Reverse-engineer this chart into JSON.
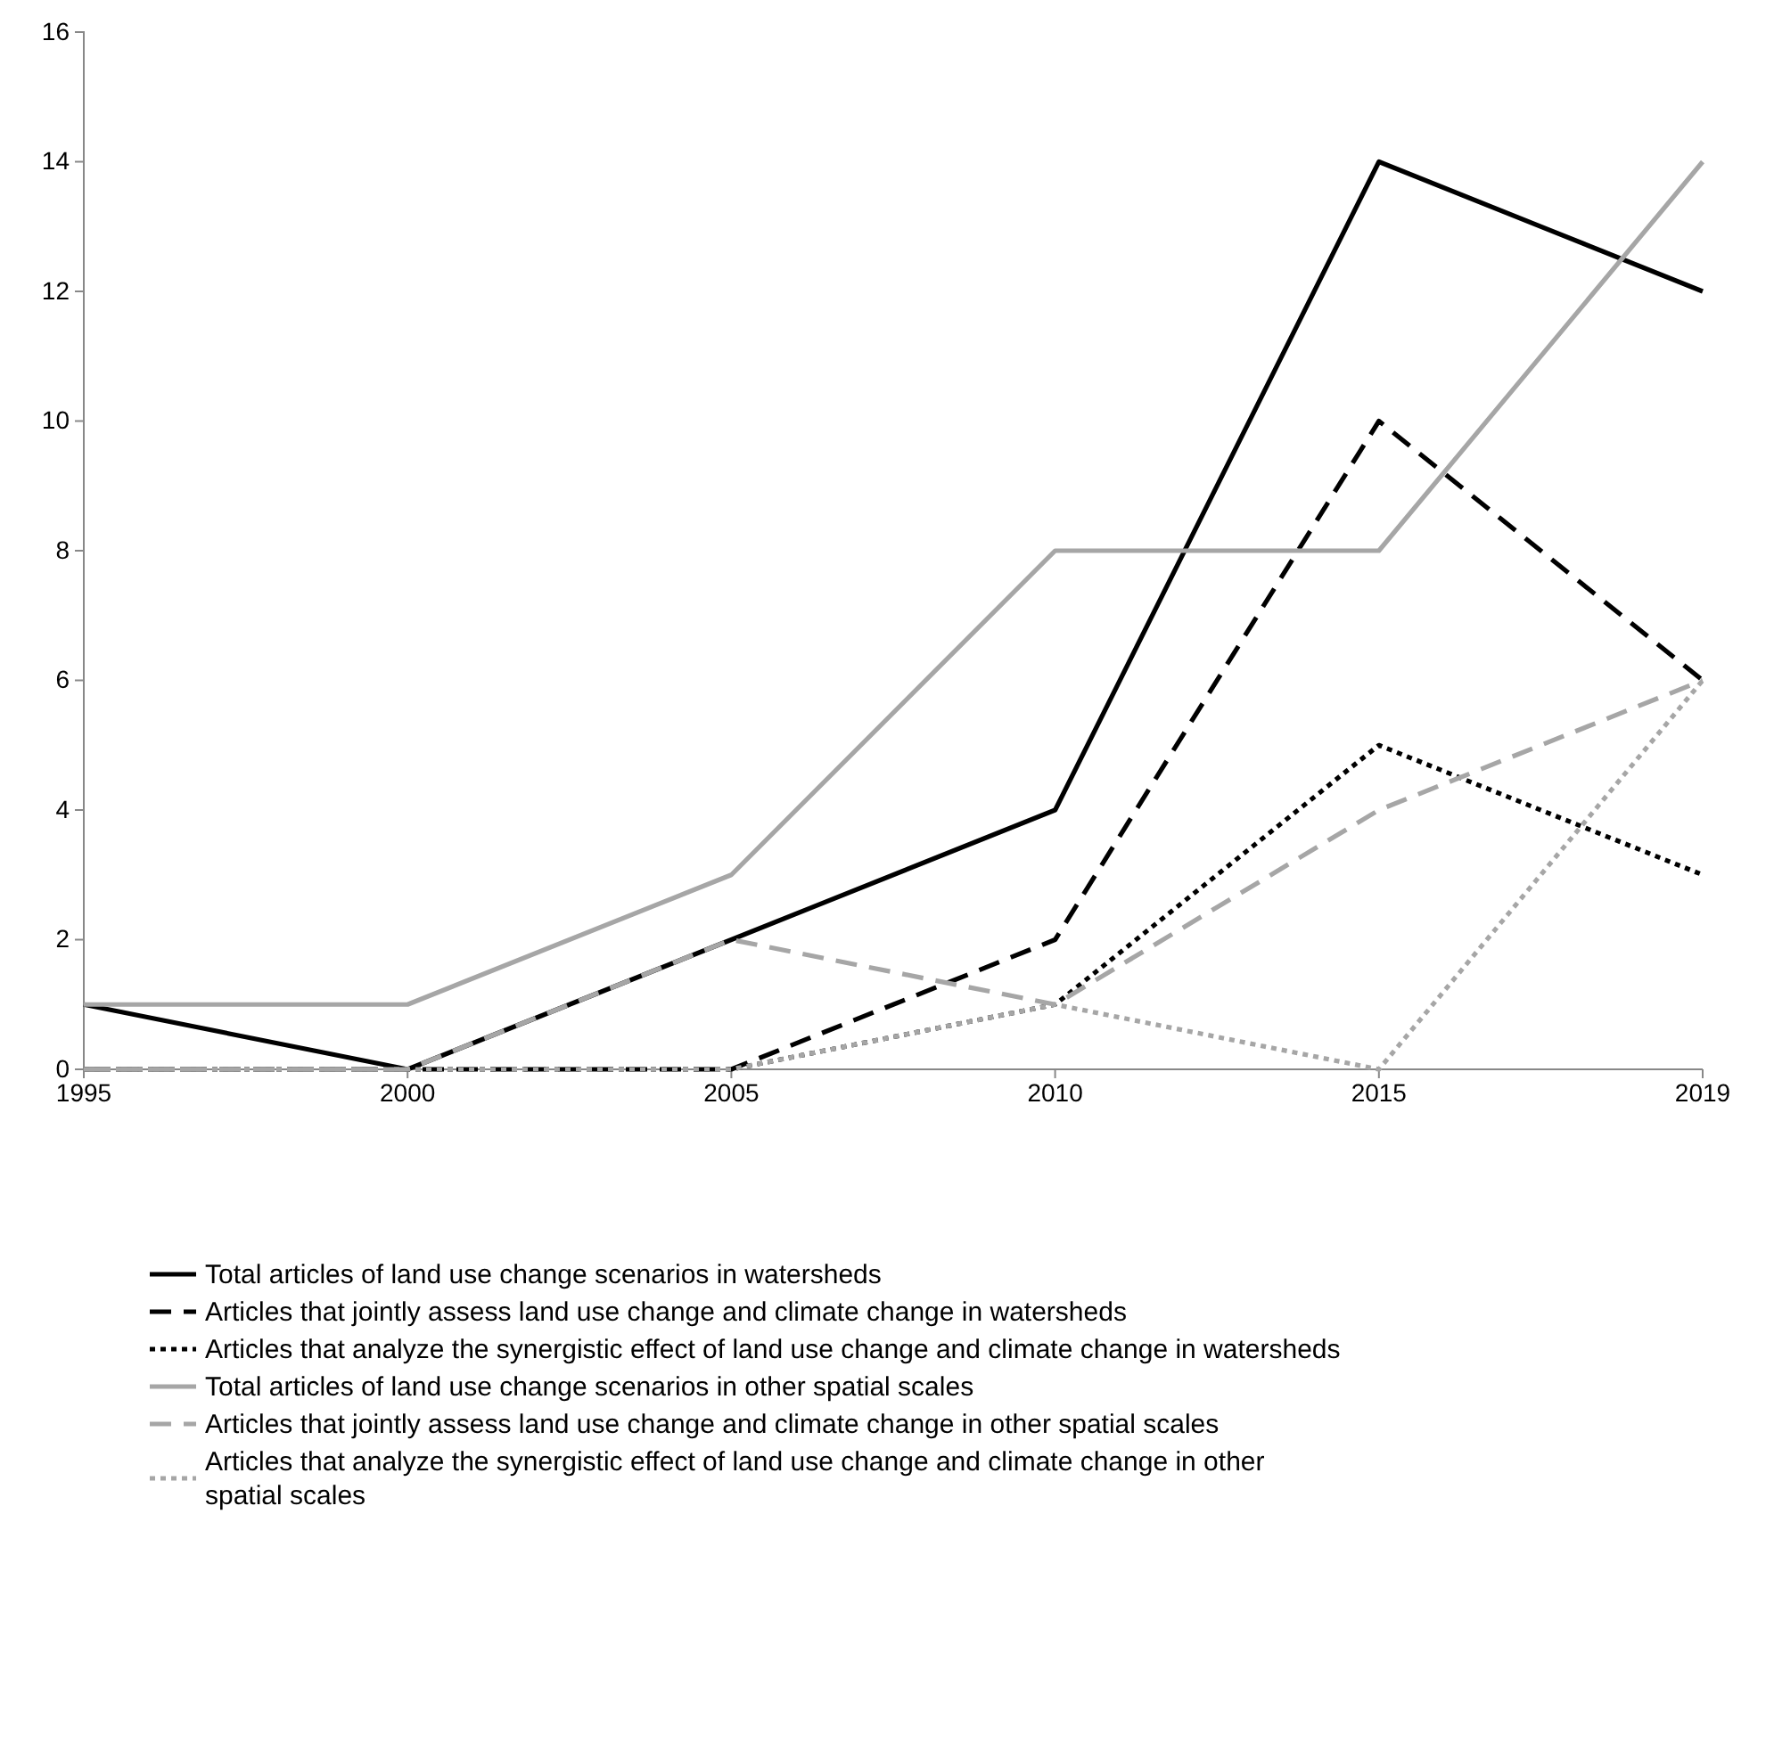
{
  "chart_data": {
    "type": "line",
    "categories": [
      "1995",
      "2000",
      "2005",
      "2010",
      "2015",
      "2019"
    ],
    "ylim": [
      0,
      16
    ],
    "yticks": [
      0,
      2,
      4,
      6,
      8,
      10,
      12,
      14,
      16
    ],
    "grid": false,
    "legend": "bottom",
    "marker": "none",
    "series": [
      {
        "name": "Total articles of land use change scenarios in watersheds",
        "color": "#000000",
        "line_style": "solid",
        "values": [
          1,
          0,
          2,
          4,
          14,
          12
        ]
      },
      {
        "name": "Articles that jointly assess land use change and climate change in watersheds",
        "color": "#000000",
        "line_style": "dashed",
        "values": [
          0,
          0,
          0,
          2,
          10,
          6
        ]
      },
      {
        "name": "Articles that analyze the synergistic effect of land use change and climate change in watersheds",
        "color": "#000000",
        "line_style": "dotted",
        "values": [
          0,
          0,
          0,
          1,
          5,
          3
        ]
      },
      {
        "name": "Total articles of land use change scenarios in other spatial scales",
        "color": "#a6a6a6",
        "line_style": "solid",
        "values": [
          1,
          1,
          3,
          8,
          8,
          14
        ]
      },
      {
        "name": "Articles that jointly assess land use change and climate change in other spatial scales",
        "color": "#a6a6a6",
        "line_style": "dashed",
        "values": [
          0,
          0,
          2,
          1,
          4,
          6
        ]
      },
      {
        "name": "Articles that analyze the synergistic effect of land use change and climate change in other spatial scales",
        "color": "#a6a6a6",
        "line_style": "dotted",
        "values": [
          0,
          0,
          0,
          1,
          0,
          6
        ]
      }
    ]
  }
}
